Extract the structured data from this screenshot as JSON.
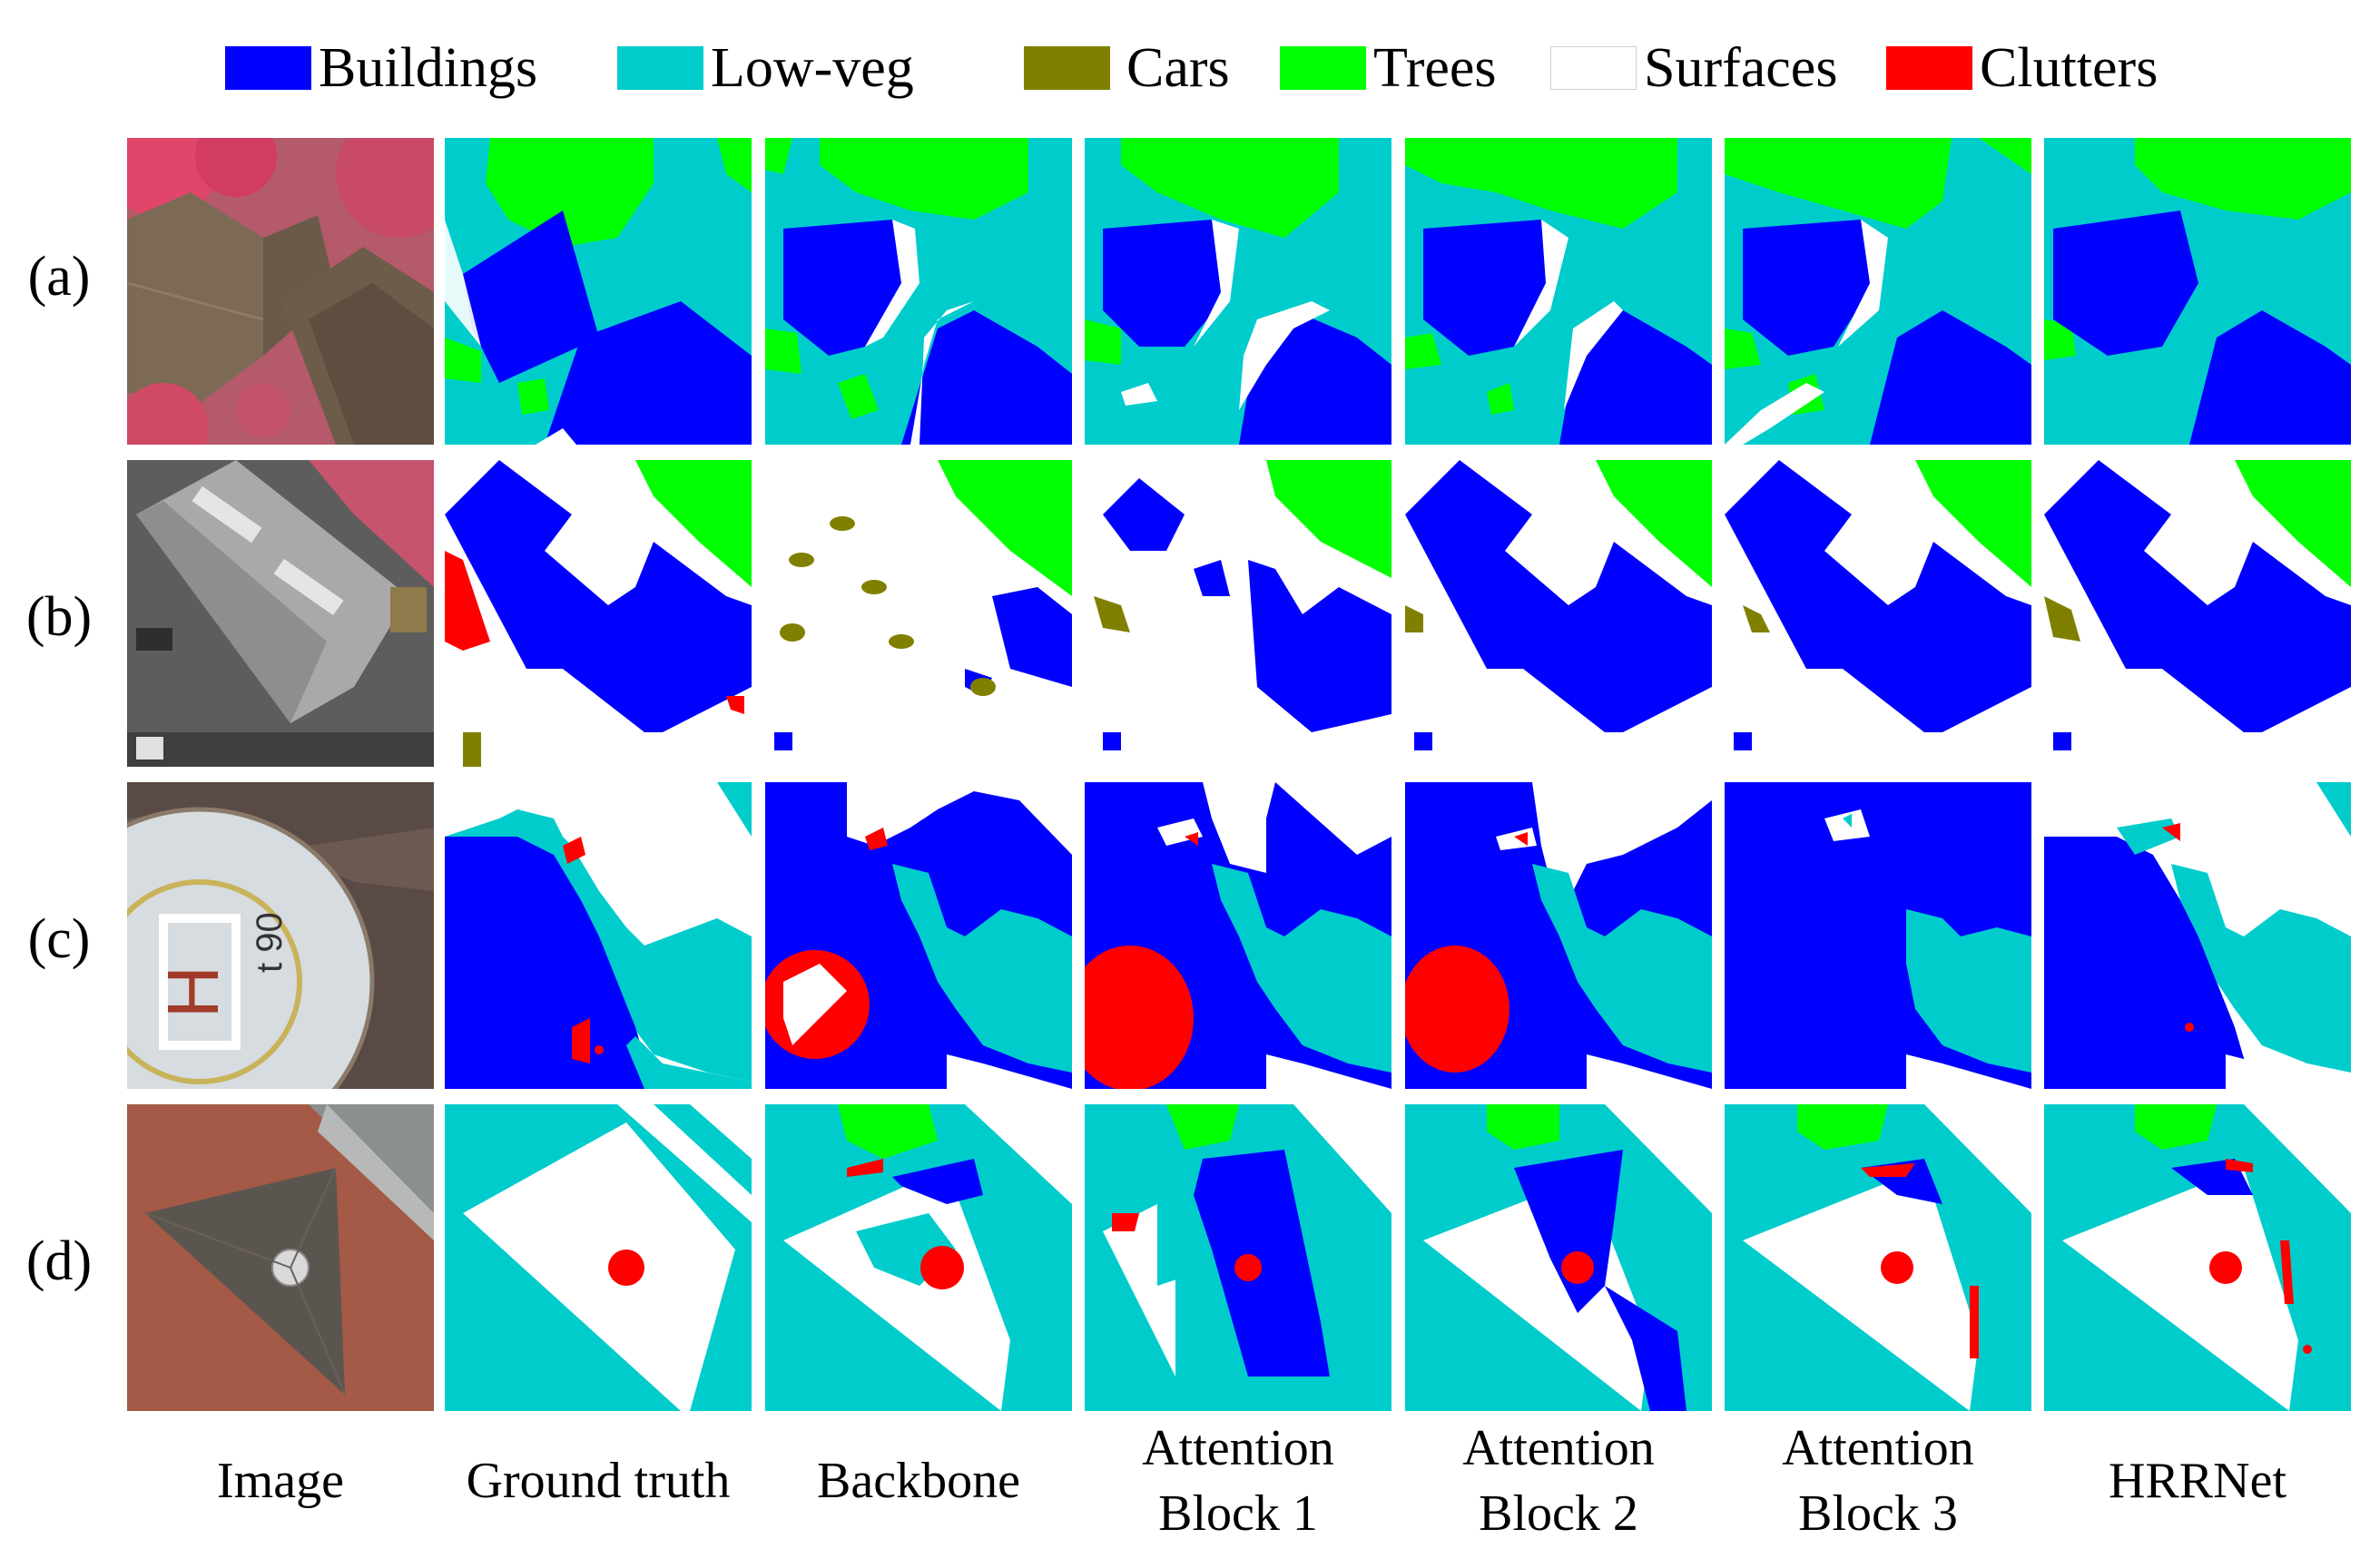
{
  "legend": {
    "items": [
      {
        "label": "Buildings",
        "color": "#0000FF"
      },
      {
        "label": "Low-veg",
        "color": "#00CCCC"
      },
      {
        "label": "Cars",
        "color": "#808000"
      },
      {
        "label": "Trees",
        "color": "#00FF00"
      },
      {
        "label": "Surfaces",
        "color": "#FFFFFF"
      },
      {
        "label": "Clutters",
        "color": "#FF0000"
      }
    ]
  },
  "rows": [
    {
      "label": "(a)"
    },
    {
      "label": "(b)"
    },
    {
      "label": "(c)"
    },
    {
      "label": "(d)"
    }
  ],
  "columns": [
    {
      "label": "Image"
    },
    {
      "label": "Ground truth"
    },
    {
      "label": "Backbone"
    },
    {
      "label_line1": "Attention",
      "label_line2": "Block 1"
    },
    {
      "label_line1": "Attention",
      "label_line2": "Block 2"
    },
    {
      "label_line1": "Attention",
      "label_line2": "Block 3"
    },
    {
      "label": "HRRNet"
    }
  ],
  "image_row_d_text": {
    "helipad_letter": "H",
    "helipad_number": "t 90"
  }
}
